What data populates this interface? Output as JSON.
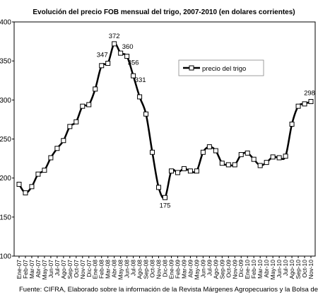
{
  "chart_data": {
    "type": "line",
    "title": "Evolución del precio FOB mensual del trigo, 2007-2010 (en dolares corrientes)",
    "source": "Fuente: CIFRA, Elaborado sobre la información de la Revista Márgenes Agropecuarios y la Bolsa de Cereales de",
    "ylim": [
      100,
      400
    ],
    "yticks": [
      100,
      150,
      200,
      250,
      300,
      350,
      400
    ],
    "grid": false,
    "legend_position": "right",
    "x_labels": [
      "Ene-07",
      "Feb-07",
      "Mar-07",
      "Abr-07",
      "May-07",
      "Jun-07",
      "Jul-07",
      "Ago-07",
      "Sep-07",
      "Oct-07",
      "Nov-07",
      "Dic-07",
      "Ene-08",
      "Feb-08",
      "Mar-08",
      "Abr-08",
      "May-08",
      "Jun-08",
      "Jul-08",
      "Ago-08",
      "Sep-08",
      "Oct-08",
      "Nov-08",
      "Dic-08",
      "Ene-09",
      "Feb-09",
      "Mar-09",
      "Abr-09",
      "May-09",
      "Jun-09",
      "Jul-09",
      "Ago-09",
      "Sep-09",
      "Oct-09",
      "Nov-09",
      "Dic-09",
      "Ene-10",
      "Feb-10",
      "Mar-10",
      "Abr-10",
      "May-10",
      "Jun-10",
      "Jul-10",
      "Ago-10",
      "Sep-10",
      "Oct-10",
      "Nov-10"
    ],
    "series": [
      {
        "name": "precio del trigo",
        "color": "#000000",
        "values": [
          192,
          181,
          189,
          205,
          210,
          226,
          238,
          248,
          266,
          272,
          292,
          294,
          314,
          344,
          347,
          372,
          360,
          356,
          331,
          304,
          282,
          233,
          188,
          175,
          209,
          207,
          212,
          209,
          209,
          233,
          240,
          235,
          219,
          217,
          217,
          230,
          232,
          224,
          216,
          220,
          227,
          226,
          228,
          269,
          292,
          295,
          298
        ]
      }
    ],
    "labeled_points": [
      {
        "index": 14,
        "label": "347"
      },
      {
        "index": 15,
        "label": "372"
      },
      {
        "index": 16,
        "label": "360"
      },
      {
        "index": 17,
        "label": "356"
      },
      {
        "index": 18,
        "label": "331"
      },
      {
        "index": 23,
        "label": "175"
      },
      {
        "index": 46,
        "label": "298"
      }
    ]
  }
}
